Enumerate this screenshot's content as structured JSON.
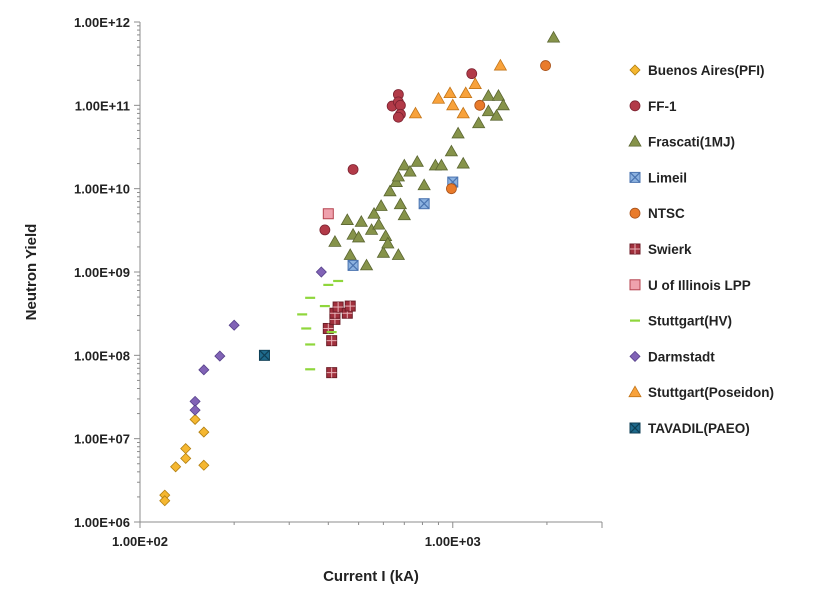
{
  "chart_data": {
    "type": "scatter",
    "xlabel": "Current I (kA)",
    "ylabel": "Neutron Yield",
    "x_scale": "log",
    "y_scale": "log",
    "xlim": [
      100,
      3000
    ],
    "ylim": [
      1000000,
      1000000000000
    ],
    "grid": false,
    "legend_position": "right",
    "x_ticks": [
      {
        "value": 100,
        "label": "1.00E+02"
      },
      {
        "value": 1000,
        "label": "1.00E+03"
      }
    ],
    "y_ticks": [
      {
        "value": 1000000,
        "label": "1.00E+06"
      },
      {
        "value": 10000000,
        "label": "1.00E+07"
      },
      {
        "value": 100000000,
        "label": "1.00E+08"
      },
      {
        "value": 1000000000,
        "label": "1.00E+09"
      },
      {
        "value": 10000000000,
        "label": "1.00E+10"
      },
      {
        "value": 100000000000,
        "label": "1.00E+11"
      },
      {
        "value": 1000000000000,
        "label": "1.00E+12"
      }
    ],
    "series": [
      {
        "name": "Buenos Aires(PFI)",
        "marker": "diamond",
        "color": "#f5b731",
        "stroke": "#b07e10",
        "points": [
          [
            120,
            2100000
          ],
          [
            120,
            1800000
          ],
          [
            130,
            4600000
          ],
          [
            140,
            5800000
          ],
          [
            140,
            7600000
          ],
          [
            150,
            17000000
          ],
          [
            160,
            12000000
          ],
          [
            160,
            4800000
          ]
        ]
      },
      {
        "name": "FF-1",
        "marker": "circle",
        "color": "#b23a48",
        "stroke": "#7c2230",
        "points": [
          [
            390,
            3200000000
          ],
          [
            480,
            17000000000
          ],
          [
            640,
            98000000000
          ],
          [
            670,
            135000000000
          ],
          [
            670,
            110000000000
          ],
          [
            680,
            100000000000
          ],
          [
            680,
            78000000000
          ],
          [
            670,
            72000000000
          ],
          [
            1150,
            240000000000
          ]
        ]
      },
      {
        "name": "Frascati(1MJ)",
        "marker": "triangle",
        "color": "#86934a",
        "stroke": "#5a6530",
        "points": [
          [
            420,
            2300000000
          ],
          [
            460,
            4200000000
          ],
          [
            470,
            1600000000
          ],
          [
            480,
            2800000000
          ],
          [
            500,
            2600000000
          ],
          [
            510,
            4000000000
          ],
          [
            530,
            1200000000
          ],
          [
            550,
            3200000000
          ],
          [
            560,
            5000000000
          ],
          [
            580,
            3700000000
          ],
          [
            590,
            6200000000
          ],
          [
            600,
            1700000000
          ],
          [
            610,
            2700000000
          ],
          [
            620,
            2200000000
          ],
          [
            630,
            9300000000
          ],
          [
            660,
            12000000000
          ],
          [
            670,
            14000000000
          ],
          [
            680,
            6500000000
          ],
          [
            670,
            1600000000
          ],
          [
            700,
            4800000000
          ],
          [
            700,
            19000000000
          ],
          [
            730,
            16000000000
          ],
          [
            770,
            21000000000
          ],
          [
            810,
            11000000000
          ],
          [
            880,
            19000000000
          ],
          [
            920,
            19000000000
          ],
          [
            990,
            28000000000
          ],
          [
            1040,
            46000000000
          ],
          [
            1080,
            20000000000
          ],
          [
            1210,
            61000000000
          ],
          [
            1300,
            85000000000
          ],
          [
            1300,
            130000000000
          ],
          [
            1380,
            75000000000
          ],
          [
            1400,
            130000000000
          ],
          [
            1450,
            100000000000
          ],
          [
            2100,
            650000000000
          ]
        ]
      },
      {
        "name": "Limeil",
        "marker": "xsquare",
        "color": "#8cb2e0",
        "stroke": "#4b74b0",
        "points": [
          [
            480,
            1200000000
          ],
          [
            810,
            6600000000
          ],
          [
            1000,
            12000000000
          ]
        ]
      },
      {
        "name": "NTSC",
        "marker": "circle",
        "color": "#e97b2b",
        "stroke": "#a8521a",
        "points": [
          [
            990,
            10000000000
          ],
          [
            1220,
            100000000000
          ],
          [
            1980,
            300000000000
          ]
        ]
      },
      {
        "name": "Swierk",
        "marker": "plussquare",
        "color": "#a1303d",
        "stroke": "#6c1e28",
        "points": [
          [
            400,
            210000000
          ],
          [
            410,
            150000000
          ],
          [
            410,
            62000000
          ],
          [
            420,
            270000000
          ],
          [
            420,
            320000000
          ],
          [
            430,
            380000000
          ],
          [
            460,
            320000000
          ],
          [
            470,
            390000000
          ]
        ]
      },
      {
        "name": "U of Illinois LPP",
        "marker": "square",
        "color": "#efa1ad",
        "stroke": "#b5434f",
        "points": [
          [
            400,
            5000000000
          ]
        ]
      },
      {
        "name": "Stuttgart(HV)",
        "marker": "dash",
        "color": "#8fd63c",
        "stroke": "#8fd63c",
        "points": [
          [
            330,
            310000000
          ],
          [
            340,
            210000000
          ],
          [
            350,
            490000000
          ],
          [
            350,
            135000000
          ],
          [
            350,
            68000000
          ],
          [
            390,
            390000000
          ],
          [
            400,
            700000000
          ],
          [
            410,
            190000000
          ],
          [
            430,
            780000000
          ]
        ]
      },
      {
        "name": "Darmstadt",
        "marker": "diamond",
        "color": "#8163b6",
        "stroke": "#56408a",
        "points": [
          [
            150,
            28000000
          ],
          [
            150,
            22000000
          ],
          [
            160,
            67000000
          ],
          [
            180,
            98000000
          ],
          [
            200,
            230000000
          ],
          [
            380,
            1000000000
          ]
        ]
      },
      {
        "name": "Stuttgart(Poseidon)",
        "marker": "triangle",
        "color": "#f8a23b",
        "stroke": "#c27418",
        "points": [
          [
            760,
            80000000000
          ],
          [
            900,
            120000000000
          ],
          [
            980,
            140000000000
          ],
          [
            1000,
            100000000000
          ],
          [
            1080,
            80000000000
          ],
          [
            1100,
            140000000000
          ],
          [
            1180,
            180000000000
          ],
          [
            1420,
            300000000000
          ]
        ]
      },
      {
        "name": "TAVADIL(PAEO)",
        "marker": "xsquare",
        "color": "#1f6a8c",
        "stroke": "#0f3f56",
        "points": [
          [
            250,
            100000000
          ]
        ]
      }
    ]
  }
}
